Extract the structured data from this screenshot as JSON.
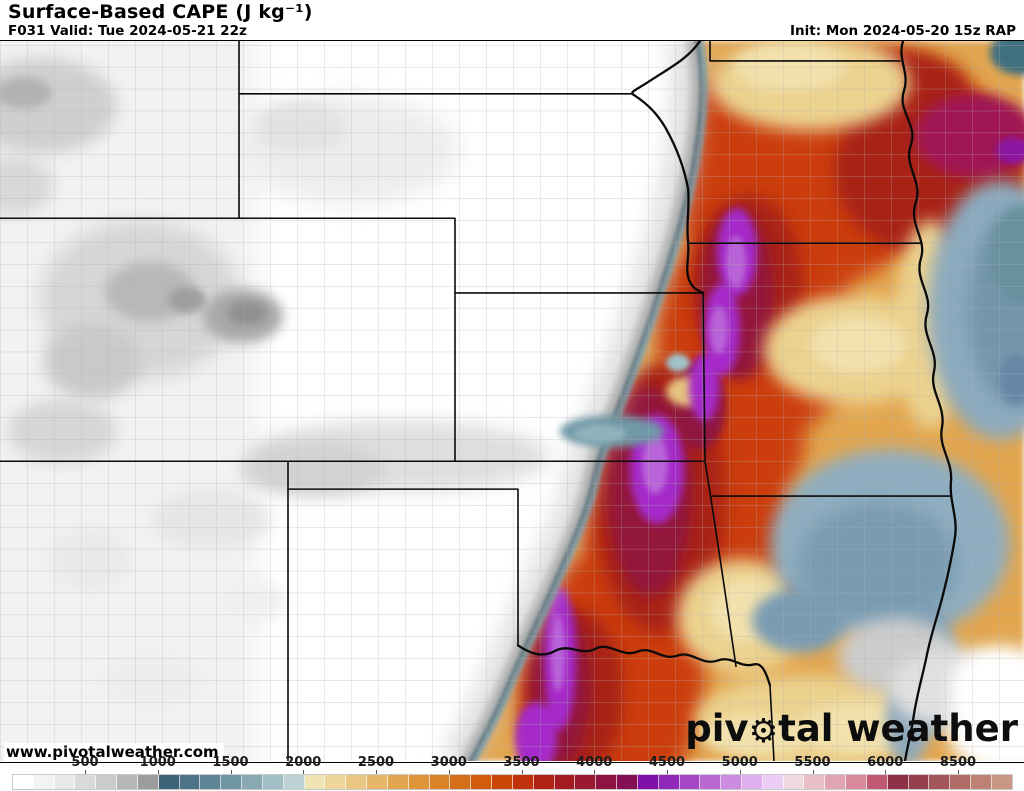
{
  "header": {
    "title": "Surface-Based CAPE (J kg⁻¹)",
    "valid": "F031 Valid: Tue 2024-05-21 22z",
    "init": "Init: Mon 2024-05-20 15z RAP"
  },
  "watermark": "www.pivotalweather.com",
  "logo": {
    "part1": "piv",
    "gear": "⚙",
    "part2": "tal weather"
  },
  "colorbar": {
    "tick_labels": [
      "500",
      "1000",
      "1500",
      "2000",
      "2500",
      "3000",
      "3500",
      "4000",
      "4500",
      "5000",
      "5500",
      "6000",
      "8500"
    ],
    "segment_colors": [
      "#ffffff",
      "#f3f3f3",
      "#e8e8e8",
      "#dadada",
      "#cbcbcb",
      "#b7b7b7",
      "#9c9c9c",
      "#3b6375",
      "#4c7486",
      "#5e8595",
      "#7297a4",
      "#88a9b2",
      "#a2bec5",
      "#bdd3d7",
      "#f1e4b4",
      "#eed69b",
      "#eac782",
      "#e6b768",
      "#e2a650",
      "#de9439",
      "#da8228",
      "#d66f19",
      "#d25c0c",
      "#ca4708",
      "#bf320c",
      "#b02213",
      "#a31b20",
      "#9a1830",
      "#8f1342",
      "#840f55",
      "#7f10a8",
      "#9029b8",
      "#a347c6",
      "#b869d4",
      "#cc8ce2",
      "#dfaff0",
      "#eccdf6",
      "#f0d8df",
      "#e9bfc9",
      "#e0a4b2",
      "#d8899b",
      "#c05a72",
      "#8e3046",
      "#96404e",
      "#a35659",
      "#b06c66",
      "#bd8274",
      "#c99884"
    ]
  },
  "map_key_colors": {
    "low_cape_gray": "#cccccc",
    "dryline_slate": "#4a656f",
    "dryline_blue": "#7aa2b0",
    "warm_orange": "#e2a64f",
    "high_red": "#cb3d0f",
    "extreme_purple": "#a52cc9",
    "cool_patch_blue": "#7a9cb2",
    "state_border": "#0a0a0a",
    "county_line": "#b0b0b0"
  }
}
